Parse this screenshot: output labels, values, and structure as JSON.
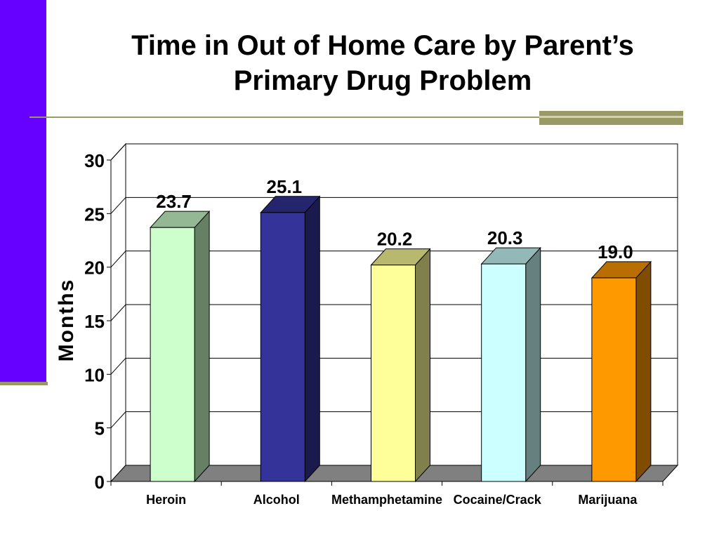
{
  "slide": {
    "title_line1": "Time in Out of Home Care by Parent’s",
    "title_line2": "Primary Drug Problem",
    "accent_color": "#6600ff",
    "rule_color": "#999966"
  },
  "chart_data": {
    "type": "bar",
    "style": "3d-column",
    "title": "",
    "xlabel": "",
    "ylabel": "Months",
    "ylim": [
      0,
      30
    ],
    "yticks": [
      0,
      5,
      10,
      15,
      20,
      25,
      30
    ],
    "grid": true,
    "legend": "none",
    "categories": [
      "Heroin",
      "Alcohol",
      "Methamphetamine",
      "Cocaine/Crack",
      "Marijuana"
    ],
    "values": [
      23.7,
      25.1,
      20.2,
      20.3,
      19.0
    ],
    "labels": [
      "23.7",
      "25.1",
      "20.2",
      "20.3",
      "19.0"
    ],
    "colors": [
      "#ccffcc",
      "#333399",
      "#ffff99",
      "#ccffff",
      "#ff9900"
    ]
  }
}
